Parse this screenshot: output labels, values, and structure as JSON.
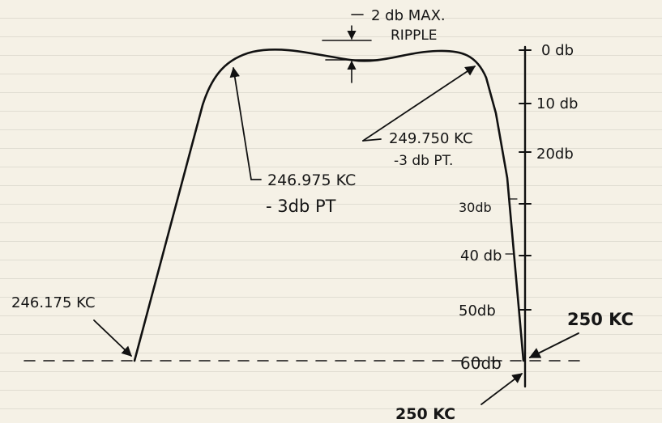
{
  "annotations": {
    "ripple": {
      "line1": "2 db MAX.",
      "line2": "RIPPLE"
    },
    "low_3db": {
      "freq": "246.975 KC",
      "label": "- 3db PT"
    },
    "high_3db": {
      "freq": "249.750 KC",
      "label": "-3 db PT."
    },
    "low_60db": "246.175 KC",
    "right_60db": "250 KC",
    "bottom_60db": "250 KC"
  },
  "scale": {
    "ticks": [
      "0 db",
      "10 db",
      "20db",
      "30db",
      "40 db",
      "50db",
      "60db"
    ]
  },
  "colors": {
    "ink": "#111111",
    "paper": "#f5f1e6"
  }
}
